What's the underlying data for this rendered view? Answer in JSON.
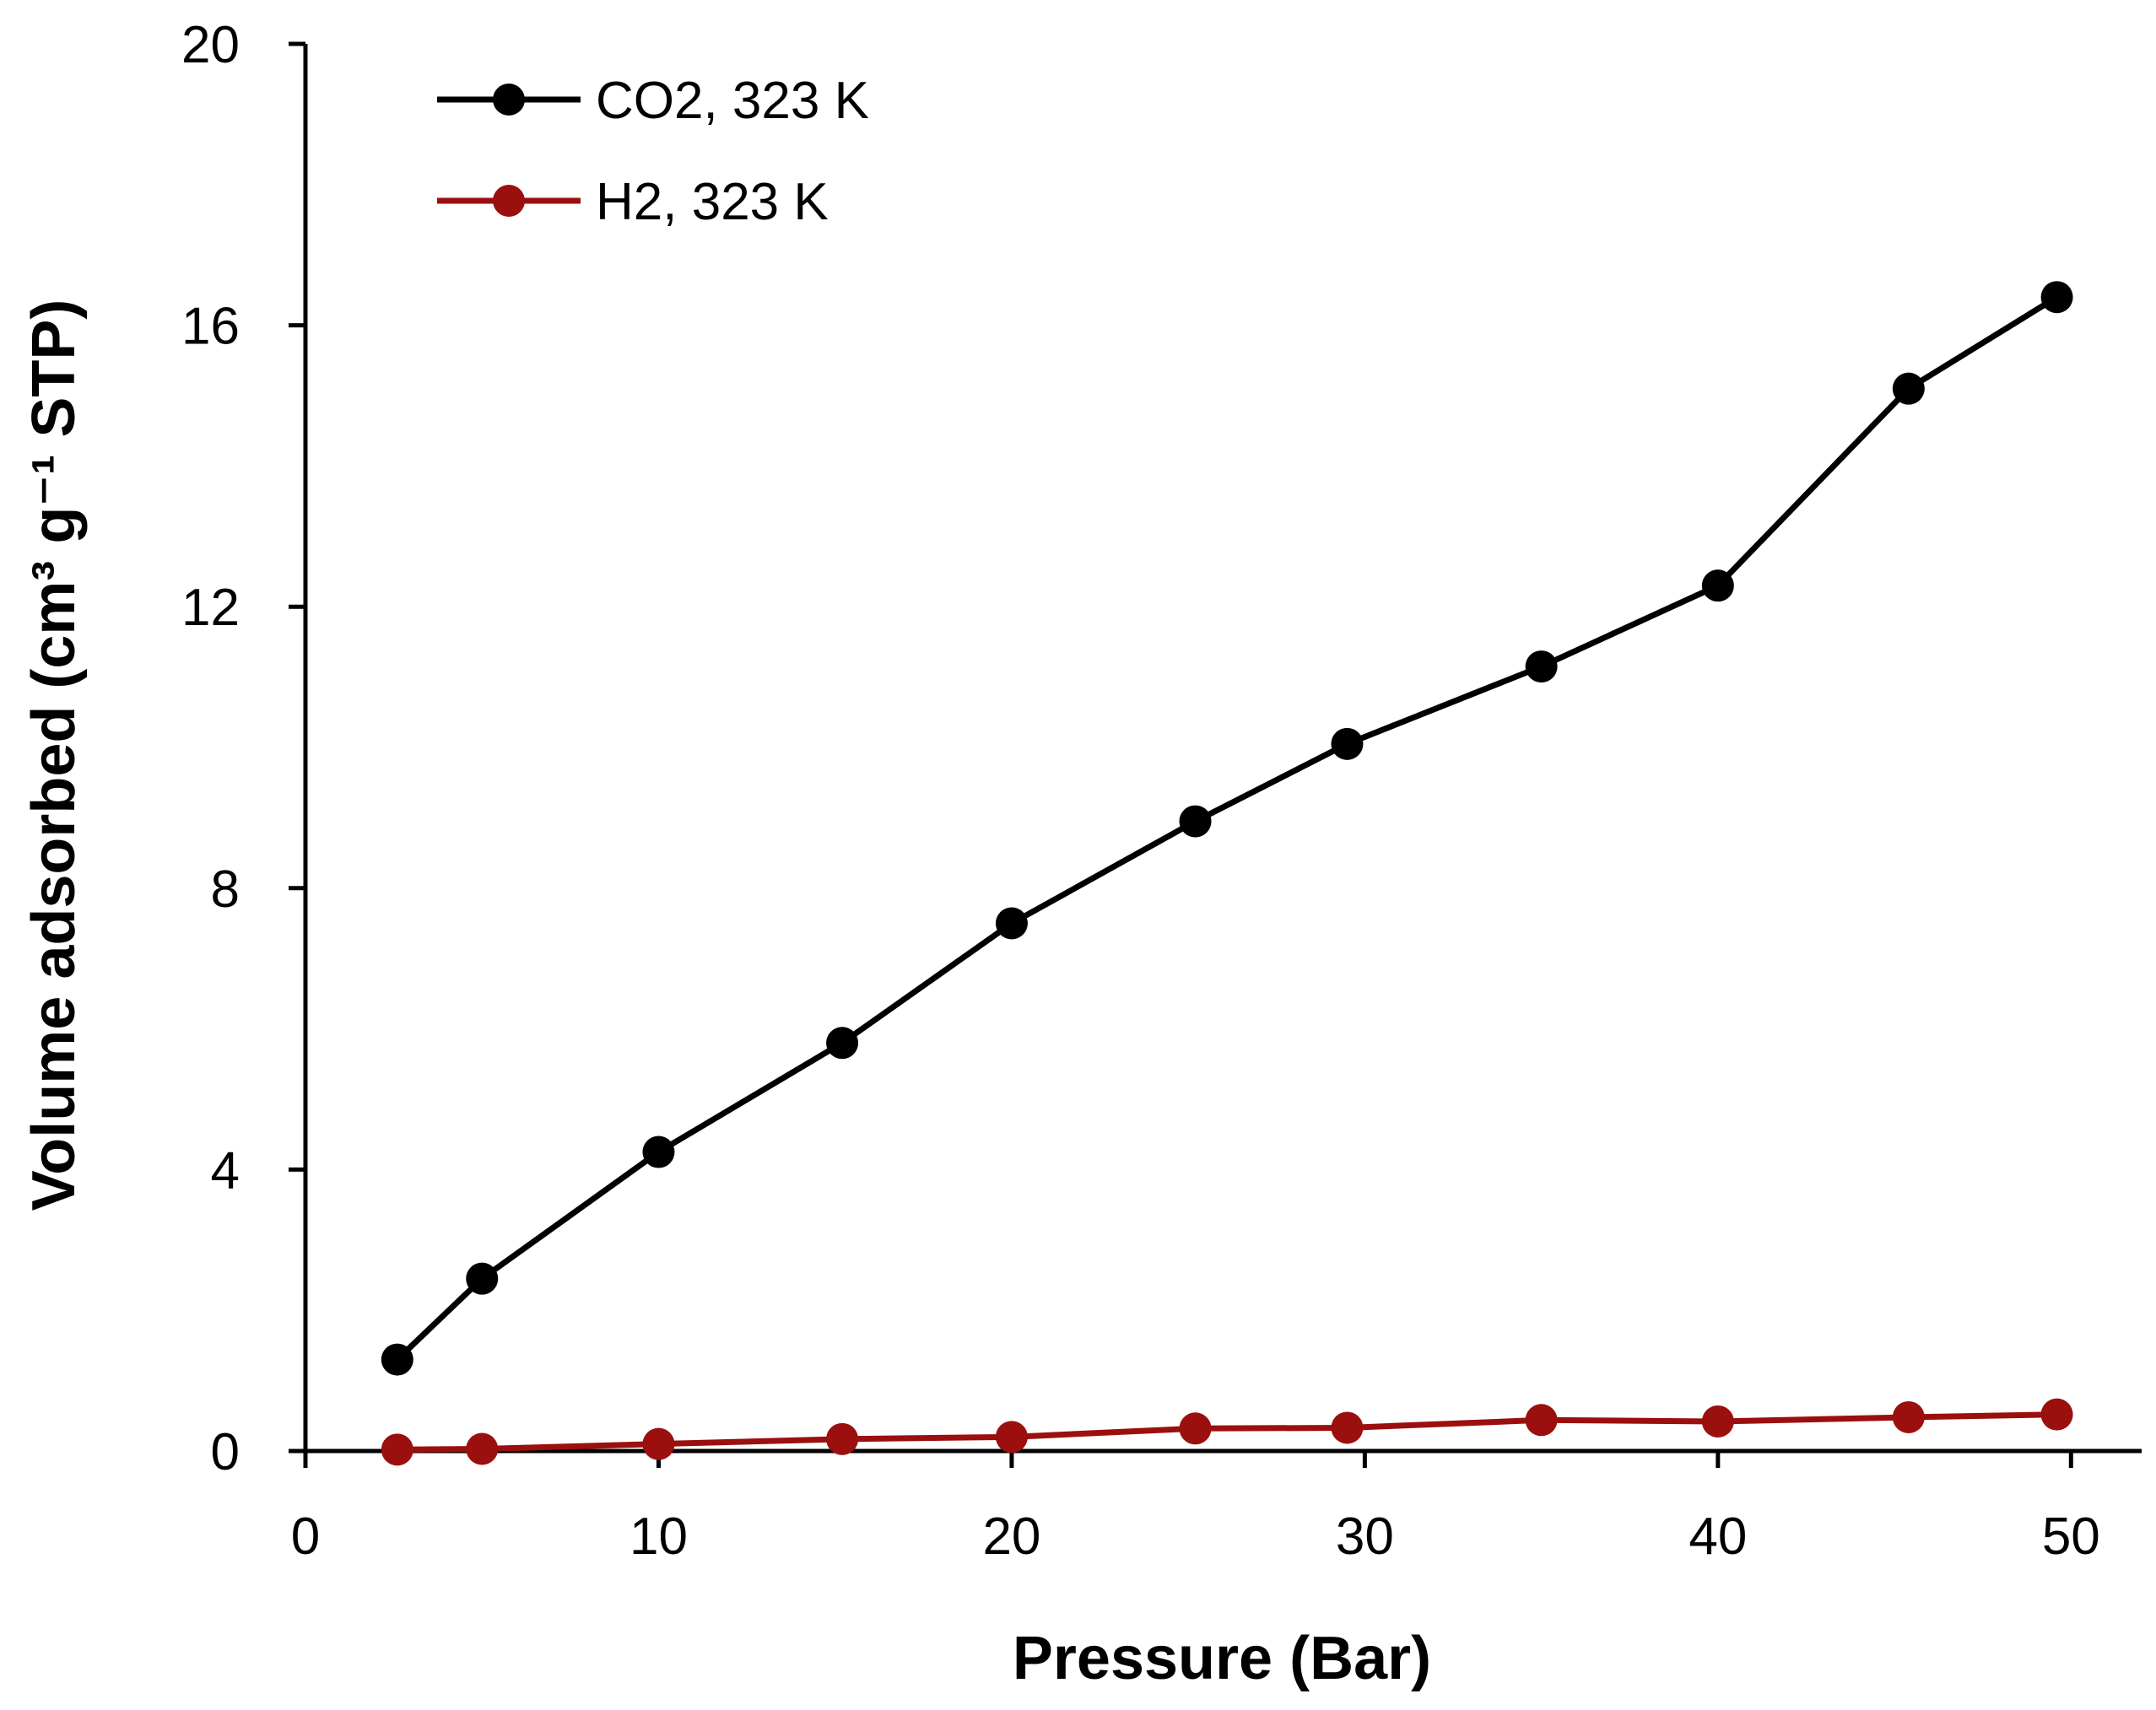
{
  "chart_data": {
    "type": "line",
    "title": "",
    "xlabel": "Pressure (Bar)",
    "ylabel": "Volume adsorbed (cm³ g⁻¹ STP)",
    "xlim": [
      0,
      52
    ],
    "ylim": [
      0,
      20
    ],
    "xticks": [
      0,
      10,
      20,
      30,
      40,
      50
    ],
    "yticks": [
      0,
      4,
      8,
      12,
      16,
      20
    ],
    "grid": false,
    "legend_position": "top-left",
    "series": [
      {
        "name": "CO2, 323 K",
        "color": "#000000",
        "x": [
          2.6,
          5.0,
          10.0,
          15.2,
          20.0,
          25.2,
          29.5,
          35.0,
          40.0,
          45.4,
          49.6
        ],
        "y": [
          1.3,
          2.45,
          4.25,
          5.8,
          7.5,
          8.95,
          10.05,
          11.15,
          12.3,
          15.1,
          16.4
        ]
      },
      {
        "name": "H2, 323 K",
        "color": "#9b0f0f",
        "x": [
          2.6,
          5.0,
          10.0,
          15.2,
          20.0,
          25.2,
          29.5,
          35.0,
          40.0,
          45.4,
          49.6
        ],
        "y": [
          0.02,
          0.03,
          0.1,
          0.17,
          0.2,
          0.32,
          0.33,
          0.44,
          0.42,
          0.48,
          0.52
        ]
      }
    ]
  }
}
